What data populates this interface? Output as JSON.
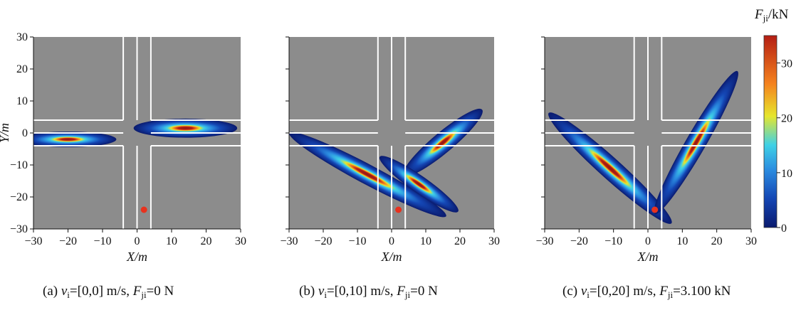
{
  "chart_data": [
    {
      "type": "heatmap",
      "caption": {
        "label": "(a)",
        "v_symbol": "v",
        "v_sub": "i",
        "v_value": "=[0,0] m/s,",
        "f_symbol": "F",
        "f_sub": "ji",
        "f_value": "=0 N"
      },
      "xlabel": "X/m",
      "ylabel": "Y/m",
      "xlim": [
        -30,
        30
      ],
      "ylim": [
        -30,
        30
      ],
      "xticks": [
        "−30",
        "−20",
        "−10",
        "0",
        "10",
        "20",
        "30"
      ],
      "yticks": [
        "−30",
        "−20",
        "−10",
        "0",
        "10",
        "20",
        "30"
      ],
      "marker": {
        "x": 2,
        "y": -24
      },
      "lobes": [
        {
          "center": [
            -20,
            -2
          ],
          "direction_deg": 0,
          "length": 28,
          "width": 4.5
        },
        {
          "center": [
            14,
            1.5
          ],
          "direction_deg": 0,
          "length": 30,
          "width": 5.5
        }
      ]
    },
    {
      "type": "heatmap",
      "caption": {
        "label": "(b)",
        "v_symbol": "v",
        "v_sub": "i",
        "v_value": "=[0,10] m/s,",
        "f_symbol": "F",
        "f_sub": "ji",
        "f_value": "=0 N"
      },
      "xlabel": "X/m",
      "ylabel": "",
      "xlim": [
        -30,
        30
      ],
      "ylim": [
        -30,
        30
      ],
      "xticks": [
        "−30",
        "−20",
        "−10",
        "0",
        "10",
        "20",
        "30"
      ],
      "yticks": [],
      "marker": {
        "x": 2,
        "y": -24
      },
      "lobes": [
        {
          "center": [
            -7,
            -13
          ],
          "direction_deg": -28,
          "length": 52,
          "width": 5.8
        },
        {
          "center": [
            15,
            -3
          ],
          "direction_deg": 40,
          "length": 30,
          "width": 6.0
        },
        {
          "center": [
            8,
            -16
          ],
          "direction_deg": -35,
          "length": 28,
          "width": 5.0
        }
      ]
    },
    {
      "type": "heatmap",
      "caption": {
        "label": "(c)",
        "v_symbol": "v",
        "v_sub": "i",
        "v_value": "=[0,20] m/s,",
        "f_symbol": "F",
        "f_sub": "ji",
        "f_value": "=3.100 kN"
      },
      "xlabel": "X/m",
      "ylabel": "",
      "xlim": [
        -30,
        30
      ],
      "ylim": [
        -30,
        30
      ],
      "xticks": [
        "−30",
        "−20",
        "−10",
        "0",
        "10",
        "20",
        "30"
      ],
      "yticks": [],
      "marker": {
        "x": 2,
        "y": -24
      },
      "lobes": [
        {
          "center": [
            -11,
            -11
          ],
          "direction_deg": -42,
          "length": 48,
          "width": 6.2
        },
        {
          "center": [
            14,
            -3
          ],
          "direction_deg": 60,
          "length": 48,
          "width": 5.8
        }
      ]
    }
  ],
  "colorbar": {
    "title_symbol": "F",
    "title_sub": "ji",
    "title_unit": "/kN",
    "min": 0,
    "max": 35,
    "ticks": [
      "0",
      "10",
      "20",
      "30"
    ],
    "tick_values": [
      0,
      10,
      20,
      30
    ]
  },
  "colors": {
    "background": "#8c8c8c",
    "road_lines": "#ffffff",
    "marker": "#e8321e",
    "colormap": [
      "#0a1a6e",
      "#1446b4",
      "#2b8ce0",
      "#3fd1e6",
      "#e6e62d",
      "#f5821e",
      "#b41e14"
    ]
  }
}
